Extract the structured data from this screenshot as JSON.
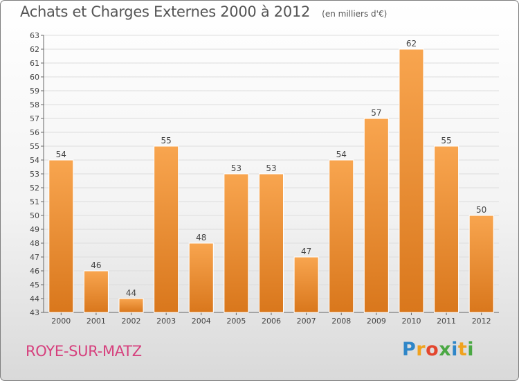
{
  "chart_data": {
    "type": "bar",
    "title": "Achats et Charges Externes 2000 à 2012",
    "subtitle": "(en milliers d'€)",
    "categories": [
      "2000",
      "2001",
      "2002",
      "2003",
      "2004",
      "2005",
      "2006",
      "2007",
      "2008",
      "2009",
      "2010",
      "2011",
      "2012"
    ],
    "values": [
      54,
      46,
      44,
      55,
      48,
      53,
      53,
      47,
      54,
      57,
      62,
      55,
      50
    ],
    "ylim": [
      43,
      63
    ],
    "yticks": [
      43,
      44,
      45,
      46,
      47,
      48,
      49,
      50,
      51,
      52,
      53,
      54,
      55,
      56,
      57,
      58,
      59,
      60,
      61,
      62,
      63
    ],
    "grid": true,
    "bar_color_top": "#f8a54f",
    "bar_color_bottom": "#d9771c"
  },
  "footer": {
    "commune": "ROYE-SUR-MATZ",
    "logo_text": "Proxiti"
  }
}
